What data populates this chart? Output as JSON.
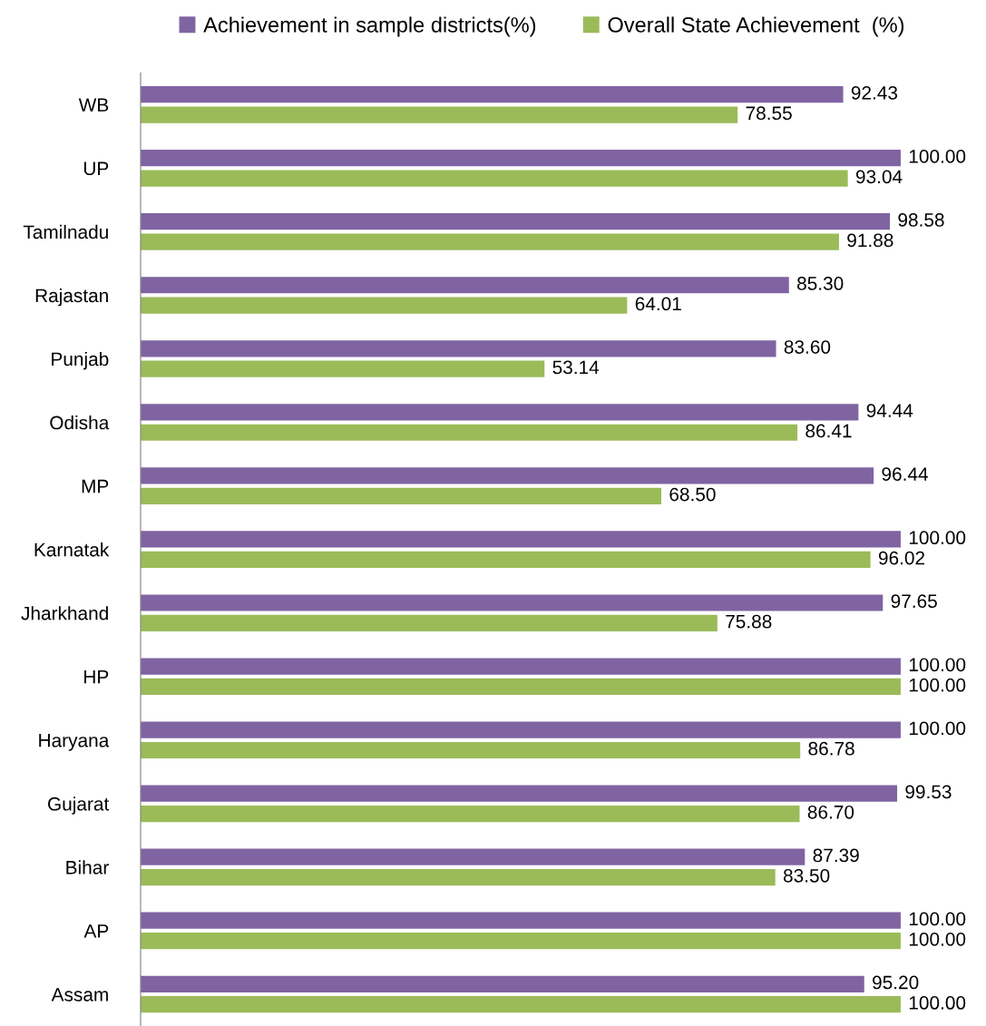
{
  "chart_data": {
    "type": "bar",
    "orientation": "horizontal",
    "legend": "top",
    "grid": false,
    "tick_labels": "y",
    "categories": [
      "WB",
      "UP",
      "Tamilnadu",
      "Rajastan",
      "Punjab",
      "Odisha",
      "MP",
      "Karnatak",
      "Jharkhand",
      "HP",
      "Haryana",
      "Gujarat",
      "Bihar",
      "AP",
      "Assam"
    ],
    "series": [
      {
        "name": "Achievement in sample districts(%)",
        "color": "#8064a2",
        "values": [
          92.43,
          100,
          98.58,
          85.3,
          83.6,
          94.44,
          96.44,
          100,
          97.65,
          100,
          100,
          99.53,
          87.39,
          100,
          95.2
        ],
        "value_labels": [
          "92.43",
          "100.00",
          "98.58",
          "85.30",
          "83.60",
          "94.44",
          "96.44",
          "100.00",
          "97.65",
          "100.00",
          "100.00",
          "99.53",
          "87.39",
          "100.00",
          "95.20"
        ]
      },
      {
        "name": "Overall State Achievement  (%)",
        "color": "#9bbb59",
        "values": [
          78.55,
          93.04,
          91.88,
          64.01,
          53.14,
          86.41,
          68.5,
          96.02,
          75.88,
          100,
          86.78,
          86.7,
          83.5,
          100,
          100
        ],
        "value_labels": [
          "78.55",
          "93.04",
          "91.88",
          "64.01",
          "53.14",
          "86.41",
          "68.50",
          "96.02",
          "75.88",
          "100.00",
          "86.78",
          "86.70",
          "83.50",
          "100.00",
          "100.00"
        ]
      }
    ]
  }
}
